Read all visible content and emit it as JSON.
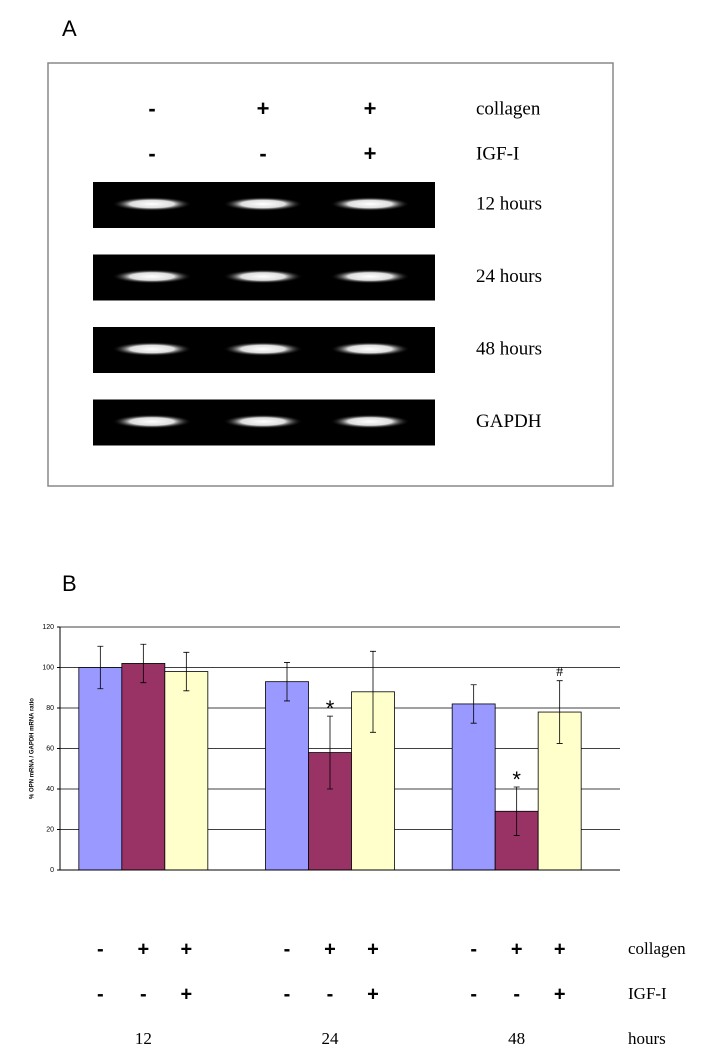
{
  "panel_a": {
    "label": "A",
    "conditions": [
      {
        "label": "collagen",
        "signs": [
          "-",
          "+",
          "+"
        ]
      },
      {
        "label": "IGF-I",
        "signs": [
          "-",
          "-",
          "+"
        ]
      }
    ],
    "lanes": [
      "12 hours",
      "24 hours",
      "48 hours",
      "GAPDH"
    ]
  },
  "panel_b": {
    "label": "B"
  },
  "chart_data": {
    "type": "bar",
    "y_label": "% OPN mRNA / GAPDH mRNA ratio",
    "categories": [
      "12",
      "24",
      "48"
    ],
    "x_label": "hours",
    "conditions": [
      {
        "label": "collagen",
        "signs": [
          "-",
          "+",
          "+",
          "-",
          "+",
          "+",
          "-",
          "+",
          "+"
        ]
      },
      {
        "label": "IGF-I",
        "signs": [
          "-",
          "-",
          "+",
          "-",
          "-",
          "+",
          "-",
          "-",
          "+"
        ]
      }
    ],
    "series": [
      {
        "color": "#9999ff",
        "values": [
          100,
          93,
          82
        ],
        "errors": [
          10.5,
          9.5,
          9.5
        ],
        "annotations": [
          null,
          null,
          null
        ]
      },
      {
        "color": "#993366",
        "values": [
          102,
          58,
          29
        ],
        "errors": [
          9.5,
          18,
          12
        ],
        "annotations": [
          null,
          "*",
          "*"
        ]
      },
      {
        "color": "#ffffcc",
        "values": [
          98,
          88,
          78
        ],
        "errors": [
          9.5,
          20,
          15.5
        ],
        "annotations": [
          null,
          null,
          "#"
        ]
      }
    ],
    "ylim": [
      0,
      120
    ],
    "yticks": [
      0,
      20,
      40,
      60,
      80,
      100,
      120
    ],
    "grid": true
  }
}
